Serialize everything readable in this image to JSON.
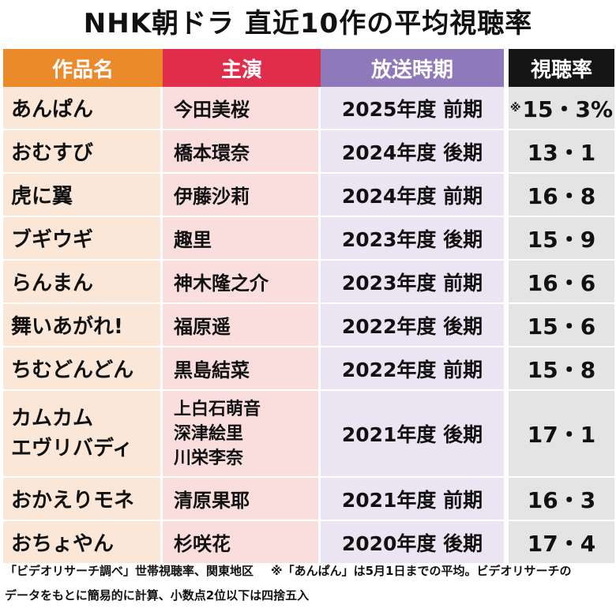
{
  "title": "NHK朝ドラ 直近10作の平均視聴率",
  "headers": {
    "work": "作品名",
    "cast": "主演",
    "period": "放送時期",
    "rating": "視聴率"
  },
  "rows": [
    {
      "work": "あんぱん",
      "cast": "今田美桜",
      "period": "2025年度 前期",
      "rating_mark": "※",
      "rating": "15・3%"
    },
    {
      "work": "おむすび",
      "cast": "橋本環奈",
      "period": "2024年度 後期",
      "rating": "13・1"
    },
    {
      "work": "虎に翼",
      "cast": "伊藤沙莉",
      "period": "2024年度 前期",
      "rating": "16・8"
    },
    {
      "work": "ブギウギ",
      "cast": "趣里",
      "period": "2023年度 後期",
      "rating": "15・9"
    },
    {
      "work": "らんまん",
      "cast": "神木隆之介",
      "period": "2023年度 前期",
      "rating": "16・6"
    },
    {
      "work": "舞いあがれ!",
      "cast": "福原遥",
      "period": "2022年度 後期",
      "rating": "15・6"
    },
    {
      "work": "ちむどんどん",
      "cast": "黒島結菜",
      "period": "2022年度 前期",
      "rating": "15・8"
    },
    {
      "work_lines": [
        "カムカム",
        "エヴリバディ"
      ],
      "cast_lines": [
        "上白石萌音",
        "深津絵里",
        "川栄李奈"
      ],
      "period": "2021年度 後期",
      "rating": "17・1"
    },
    {
      "work": "おかえりモネ",
      "cast": "清原果耶",
      "period": "2021年度 前期",
      "rating": "16・3"
    },
    {
      "work": "おちょやん",
      "cast": "杉咲花",
      "period": "2020年度 後期",
      "rating": "17・4"
    }
  ],
  "footer": {
    "source": "「ビデオリサーチ調べ」世帯視聴率、関東地区",
    "note_line1": "※「あんぱん」は5月1日までの平均。ビデオリサーチの",
    "note_line2": "データをもとに簡易的に計算、小数点2位以下は四捨五入"
  },
  "colors": {
    "work_header": "#ea8a2a",
    "cast_header": "#e02d4b",
    "period_header": "#8f79ba",
    "rating_header": "#151515",
    "work_cell": "#fbe7d8",
    "cast_cell": "#fadede",
    "period_cell": "#ebe4f2",
    "rating_cell": "#e4e4e4"
  }
}
